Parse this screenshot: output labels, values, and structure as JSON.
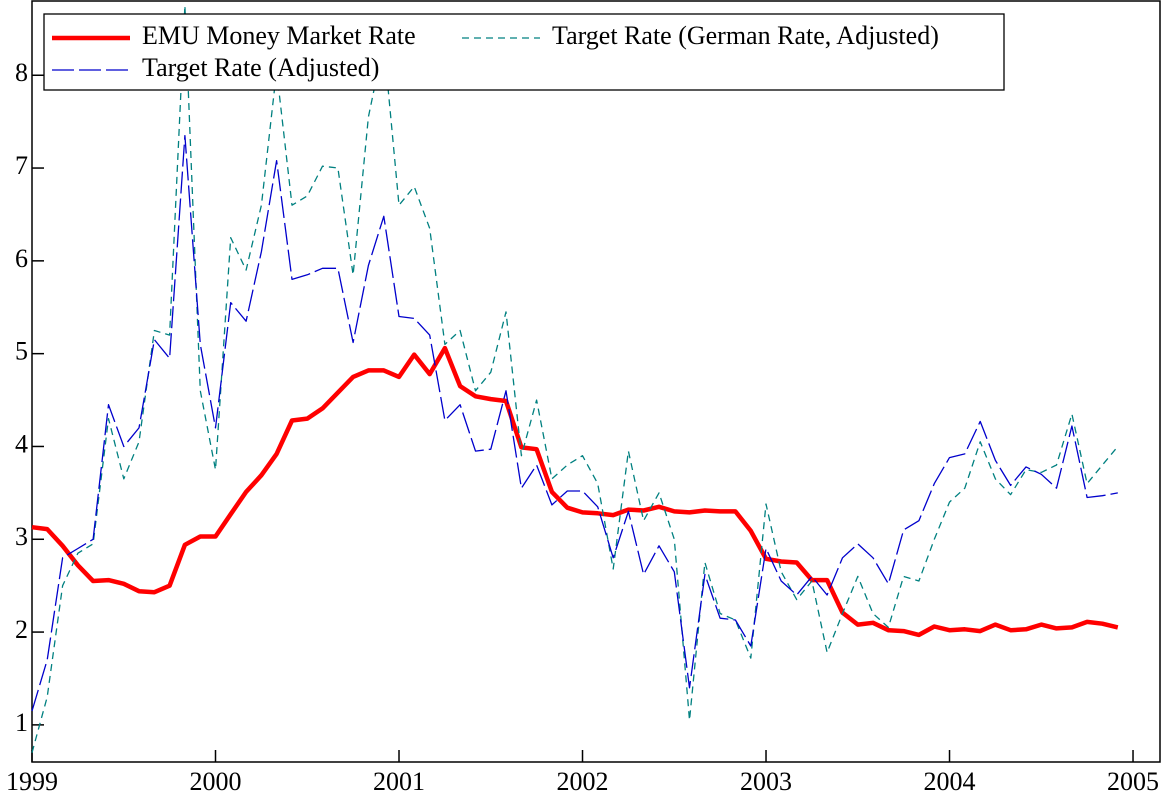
{
  "chart_data": {
    "type": "line",
    "x": [
      1999,
      1999.083,
      1999.167,
      1999.25,
      1999.333,
      1999.417,
      1999.5,
      1999.583,
      1999.667,
      1999.75,
      1999.833,
      1999.917,
      2000,
      2000.083,
      2000.167,
      2000.25,
      2000.333,
      2000.417,
      2000.5,
      2000.583,
      2000.667,
      2000.75,
      2000.833,
      2000.917,
      2001,
      2001.083,
      2001.167,
      2001.25,
      2001.333,
      2001.417,
      2001.5,
      2001.583,
      2001.667,
      2001.75,
      2001.833,
      2001.917,
      2002,
      2002.083,
      2002.167,
      2002.25,
      2002.333,
      2002.417,
      2002.5,
      2002.583,
      2002.667,
      2002.75,
      2002.833,
      2002.917,
      2003,
      2003.083,
      2003.167,
      2003.25,
      2003.333,
      2003.417,
      2003.5,
      2003.583,
      2003.667,
      2003.75,
      2003.833,
      2003.917,
      2004,
      2004.083,
      2004.167,
      2004.25,
      2004.333,
      2004.417,
      2004.5,
      2004.583,
      2004.667,
      2004.75,
      2004.833,
      2004.917
    ],
    "series": [
      {
        "name": "EMU Money Market Rate",
        "color": "#ff0000",
        "style": "solid",
        "values": [
          3.13,
          3.11,
          2.93,
          2.72,
          2.55,
          2.56,
          2.52,
          2.44,
          2.43,
          2.5,
          2.94,
          3.03,
          3.03,
          3.27,
          3.51,
          3.69,
          3.92,
          4.28,
          4.3,
          4.41,
          4.58,
          4.75,
          4.82,
          4.82,
          4.75,
          4.99,
          4.78,
          5.06,
          4.65,
          4.54,
          4.51,
          4.49,
          3.99,
          3.97,
          3.51,
          3.34,
          3.29,
          3.28,
          3.26,
          3.32,
          3.31,
          3.35,
          3.3,
          3.29,
          3.31,
          3.3,
          3.3,
          3.09,
          2.79,
          2.76,
          2.75,
          2.56,
          2.56,
          2.21,
          2.08,
          2.1,
          2.02,
          2.01,
          1.97,
          2.06,
          2.02,
          2.03,
          2.01,
          2.08,
          2.02,
          2.03,
          2.08,
          2.04,
          2.05,
          2.11,
          2.09,
          2.05
        ]
      },
      {
        "name": "Target Rate (German Rate, Adjusted)",
        "color": "#008080",
        "style": "dashed",
        "values": [
          0.7,
          1.3,
          2.5,
          2.85,
          2.95,
          4.3,
          3.65,
          4.05,
          5.25,
          5.2,
          8.75,
          4.6,
          3.75,
          6.25,
          5.9,
          6.6,
          8.05,
          6.6,
          6.7,
          7.02,
          7.0,
          5.85,
          7.55,
          8.35,
          6.6,
          6.8,
          6.35,
          5.1,
          5.25,
          4.6,
          4.8,
          5.45,
          3.9,
          4.5,
          3.65,
          3.8,
          3.9,
          3.6,
          2.68,
          3.95,
          3.2,
          3.5,
          3.0,
          1.05,
          2.75,
          2.2,
          2.13,
          1.72,
          3.38,
          2.65,
          2.35,
          2.55,
          1.78,
          2.2,
          2.6,
          2.2,
          2.05,
          2.6,
          2.55,
          3.0,
          3.4,
          3.55,
          4.05,
          3.65,
          3.48,
          3.75,
          3.72,
          3.8,
          4.35,
          3.6,
          3.8,
          4.0
        ]
      },
      {
        "name": "Target Rate (Adjusted)",
        "color": "#0000cc",
        "style": "longdash",
        "values": [
          1.15,
          1.7,
          2.8,
          2.9,
          3.0,
          4.45,
          4.0,
          4.2,
          5.15,
          4.95,
          7.35,
          5.1,
          4.2,
          5.55,
          5.35,
          6.1,
          7.08,
          5.8,
          5.85,
          5.92,
          5.92,
          5.12,
          5.95,
          6.48,
          5.4,
          5.38,
          5.2,
          4.28,
          4.45,
          3.95,
          3.97,
          4.6,
          3.55,
          3.8,
          3.37,
          3.52,
          3.52,
          3.35,
          2.8,
          3.3,
          2.62,
          2.93,
          2.65,
          1.4,
          2.62,
          2.15,
          2.13,
          1.85,
          2.9,
          2.55,
          2.4,
          2.6,
          2.4,
          2.8,
          2.95,
          2.8,
          2.52,
          3.1,
          3.2,
          3.6,
          3.88,
          3.92,
          4.27,
          3.85,
          3.58,
          3.78,
          3.7,
          3.55,
          4.22,
          3.45,
          3.47,
          3.5
        ]
      }
    ],
    "xlim": [
      1999,
      2005.147
    ],
    "xticks": [
      1999,
      2000,
      2001,
      2002,
      2003,
      2004,
      2005
    ],
    "ylim": [
      0.6,
      8.8
    ],
    "yticks": [
      1,
      2,
      3,
      4,
      5,
      6,
      7,
      8
    ],
    "legend": "upper left",
    "grid": false
  }
}
